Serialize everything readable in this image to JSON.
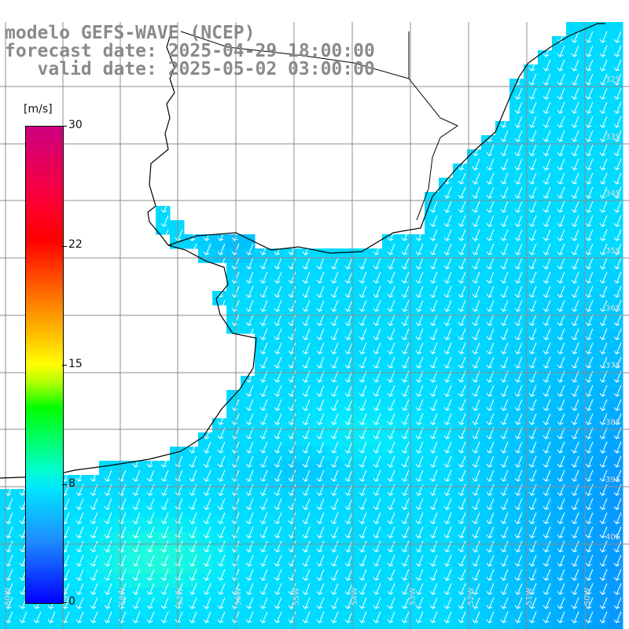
{
  "title": {
    "line1": "modelo GEFS-WAVE (NCEP)",
    "line2": "forecast date: 2025-04-29 18:00:00",
    "line3": "   valid date: 2025-05-02 03:00:00"
  },
  "colorbar": {
    "unit": "[m/s]",
    "ticks": [
      "30",
      "22",
      "15",
      "8",
      "0"
    ],
    "tick_values": [
      30,
      22,
      15,
      8,
      0
    ]
  },
  "map": {
    "lat_labels": [
      "32S",
      "33S",
      "34S",
      "35S",
      "36S",
      "37S",
      "38S",
      "39S",
      "40S"
    ],
    "lon_labels": [
      "60W",
      "59W",
      "58W",
      "57W",
      "56W",
      "55W",
      "54W",
      "53W",
      "52W",
      "51W",
      "50W"
    ],
    "wind_direction": "from north-north-east",
    "colors": {
      "land": "#ffffff",
      "coast": "#000000",
      "grid": "#8c8c8c",
      "arrows": "#ffffff",
      "low_speed": "#1e6cff",
      "mid_speed": "#00e6ff",
      "high_speed": "#33ff99"
    }
  }
}
